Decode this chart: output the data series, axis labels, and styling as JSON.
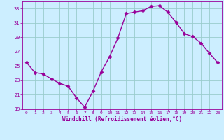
{
  "x": [
    0,
    1,
    2,
    3,
    4,
    5,
    6,
    7,
    8,
    9,
    10,
    11,
    12,
    13,
    14,
    15,
    16,
    17,
    18,
    19,
    20,
    21,
    22,
    23
  ],
  "y": [
    25.5,
    24.1,
    23.9,
    23.2,
    22.6,
    22.2,
    20.6,
    19.3,
    21.5,
    24.2,
    26.3,
    28.9,
    32.3,
    32.5,
    32.7,
    33.3,
    33.4,
    32.5,
    31.1,
    29.5,
    29.1,
    28.2,
    26.8,
    25.5
  ],
  "line_color": "#990099",
  "marker": "D",
  "markersize": 2.5,
  "linewidth": 1.0,
  "bg_color": "#cceeff",
  "grid_color": "#99cccc",
  "xlabel": "Windchill (Refroidissement éolien,°C)",
  "xlabel_color": "#990099",
  "tick_color": "#990099",
  "ylim": [
    19,
    34
  ],
  "yticks": [
    19,
    21,
    23,
    25,
    27,
    29,
    31,
    33
  ],
  "xticks": [
    0,
    1,
    2,
    3,
    4,
    5,
    6,
    7,
    8,
    9,
    10,
    11,
    12,
    13,
    14,
    15,
    16,
    17,
    18,
    19,
    20,
    21,
    22,
    23
  ],
  "spine_color": "#990099"
}
